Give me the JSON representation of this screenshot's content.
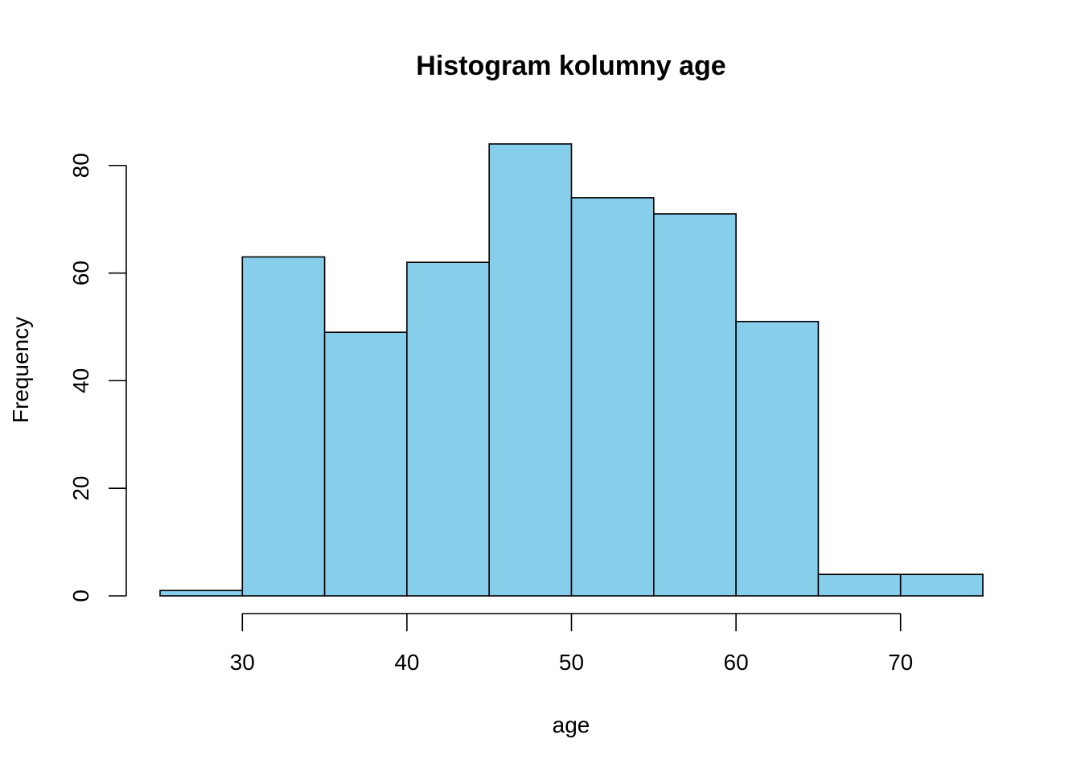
{
  "chart_data": {
    "type": "bar",
    "title": "Histogram kolumny age",
    "xlabel": "age",
    "ylabel": "Frequency",
    "bins": [
      {
        "start": 25,
        "end": 30,
        "count": 1
      },
      {
        "start": 30,
        "end": 35,
        "count": 63
      },
      {
        "start": 35,
        "end": 40,
        "count": 49
      },
      {
        "start": 40,
        "end": 45,
        "count": 62
      },
      {
        "start": 45,
        "end": 50,
        "count": 84
      },
      {
        "start": 50,
        "end": 55,
        "count": 74
      },
      {
        "start": 55,
        "end": 60,
        "count": 71
      },
      {
        "start": 60,
        "end": 65,
        "count": 51
      },
      {
        "start": 65,
        "end": 70,
        "count": 4
      },
      {
        "start": 70,
        "end": 75,
        "count": 4
      }
    ],
    "x_ticks": [
      30,
      40,
      50,
      60,
      70
    ],
    "y_ticks": [
      0,
      20,
      40,
      60,
      80
    ],
    "xlim": [
      25,
      75
    ],
    "ylim": [
      0,
      84
    ],
    "bar_color": "#87CEEB",
    "grid": false
  }
}
